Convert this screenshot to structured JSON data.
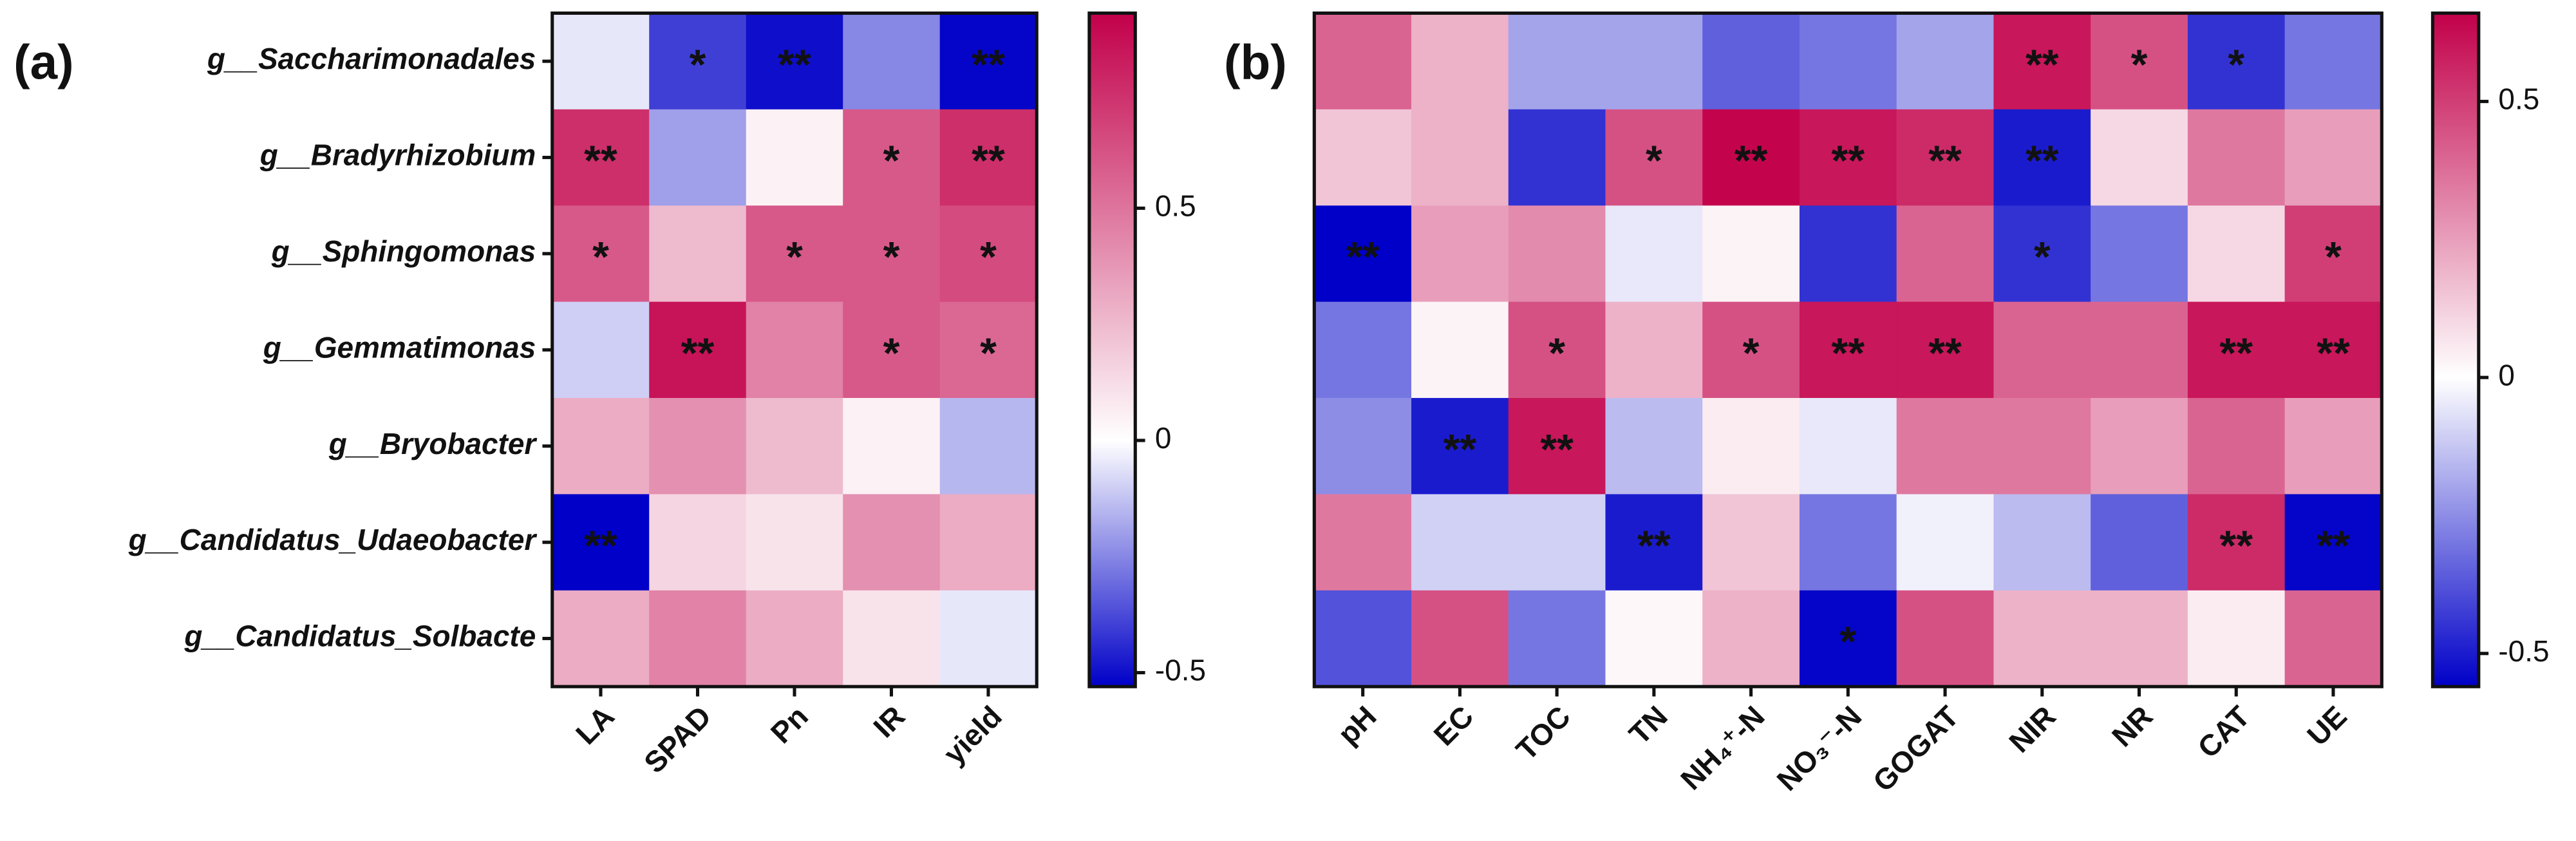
{
  "chart_data": [
    {
      "type": "heatmap",
      "label": "(a)",
      "rows": [
        "g__Saccharimonadales",
        "g__Bradyrhizobium",
        "g__Sphingomonas",
        "g__Gemmatimonas",
        "g__Bryobacter",
        "g__Candidatus_Udaeobacter",
        "g__Candidatus_Solbacte"
      ],
      "columns": [
        "LA",
        "SPAD",
        "Pn",
        "IR",
        "yield"
      ],
      "values": [
        [
          -0.05,
          -0.4,
          -0.5,
          -0.25,
          -0.52
        ],
        [
          0.75,
          -0.2,
          0.05,
          0.6,
          0.75
        ],
        [
          0.6,
          0.25,
          0.6,
          0.6,
          0.65
        ],
        [
          -0.1,
          0.85,
          0.45,
          0.6,
          0.55
        ],
        [
          0.3,
          0.4,
          0.25,
          0.05,
          -0.15
        ],
        [
          -0.53,
          0.15,
          0.1,
          0.4,
          0.3
        ],
        [
          0.3,
          0.45,
          0.3,
          0.1,
          -0.05
        ]
      ],
      "annotations": [
        [
          null,
          "*",
          "**",
          null,
          "**"
        ],
        [
          "**",
          null,
          null,
          "*",
          "**"
        ],
        [
          "*",
          null,
          "*",
          "*",
          "*"
        ],
        [
          null,
          "**",
          null,
          "*",
          "*"
        ],
        [
          null,
          null,
          null,
          null,
          null
        ],
        [
          "**",
          null,
          null,
          null,
          null
        ],
        [
          null,
          null,
          null,
          null,
          null
        ]
      ],
      "zlim": [
        -0.53,
        0.92
      ],
      "zticks": [
        -0.5,
        0,
        0.5
      ],
      "colors": {
        "low": "#0000c8",
        "mid": "#ffffff",
        "high": "#c2004a"
      }
    },
    {
      "type": "heatmap",
      "label": "(b)",
      "columns": [
        "pH",
        "EC",
        "TOC",
        "TN",
        "NH₄⁺-N",
        "NO₃⁻-N",
        "GOGAT",
        "NIR",
        "NR",
        "CAT",
        "UE"
      ],
      "values": [
        [
          0.4,
          0.2,
          -0.2,
          -0.2,
          -0.35,
          -0.3,
          -0.2,
          0.6,
          0.45,
          -0.45,
          -0.3
        ],
        [
          0.15,
          0.2,
          -0.45,
          0.45,
          0.65,
          0.6,
          0.55,
          -0.5,
          0.1,
          0.35,
          0.25
        ],
        [
          -0.56,
          0.25,
          0.3,
          -0.05,
          0.03,
          -0.45,
          0.4,
          -0.45,
          -0.3,
          0.1,
          0.5
        ],
        [
          -0.3,
          0.03,
          0.45,
          0.2,
          0.45,
          0.6,
          0.6,
          0.4,
          0.4,
          0.6,
          0.6
        ],
        [
          -0.25,
          -0.5,
          0.6,
          -0.15,
          0.05,
          -0.05,
          0.35,
          0.35,
          0.25,
          0.4,
          0.25
        ],
        [
          0.35,
          -0.1,
          -0.1,
          -0.5,
          0.15,
          -0.3,
          -0.03,
          -0.15,
          -0.35,
          0.55,
          -0.55
        ],
        [
          -0.38,
          0.45,
          -0.3,
          0.02,
          0.2,
          -0.55,
          0.45,
          0.2,
          0.2,
          0.05,
          0.4
        ]
      ],
      "annotations": [
        [
          null,
          null,
          null,
          null,
          null,
          null,
          null,
          "**",
          "*",
          "*",
          null
        ],
        [
          null,
          null,
          null,
          "*",
          "**",
          "**",
          "**",
          "**",
          null,
          null,
          null
        ],
        [
          "**",
          null,
          null,
          null,
          null,
          null,
          null,
          "*",
          null,
          null,
          "*"
        ],
        [
          null,
          null,
          "*",
          null,
          "*",
          "**",
          "**",
          null,
          null,
          "**",
          "**"
        ],
        [
          null,
          "**",
          "**",
          null,
          null,
          null,
          null,
          null,
          null,
          null,
          null
        ],
        [
          null,
          null,
          null,
          "**",
          null,
          null,
          null,
          null,
          null,
          "**",
          "**"
        ],
        [
          null,
          null,
          null,
          null,
          null,
          "*",
          null,
          null,
          null,
          null,
          null
        ]
      ],
      "zlim": [
        -0.56,
        0.66
      ],
      "zticks": [
        -0.5,
        0,
        0.5
      ],
      "colors": {
        "low": "#0000c8",
        "mid": "#ffffff",
        "high": "#c2004a"
      }
    }
  ]
}
